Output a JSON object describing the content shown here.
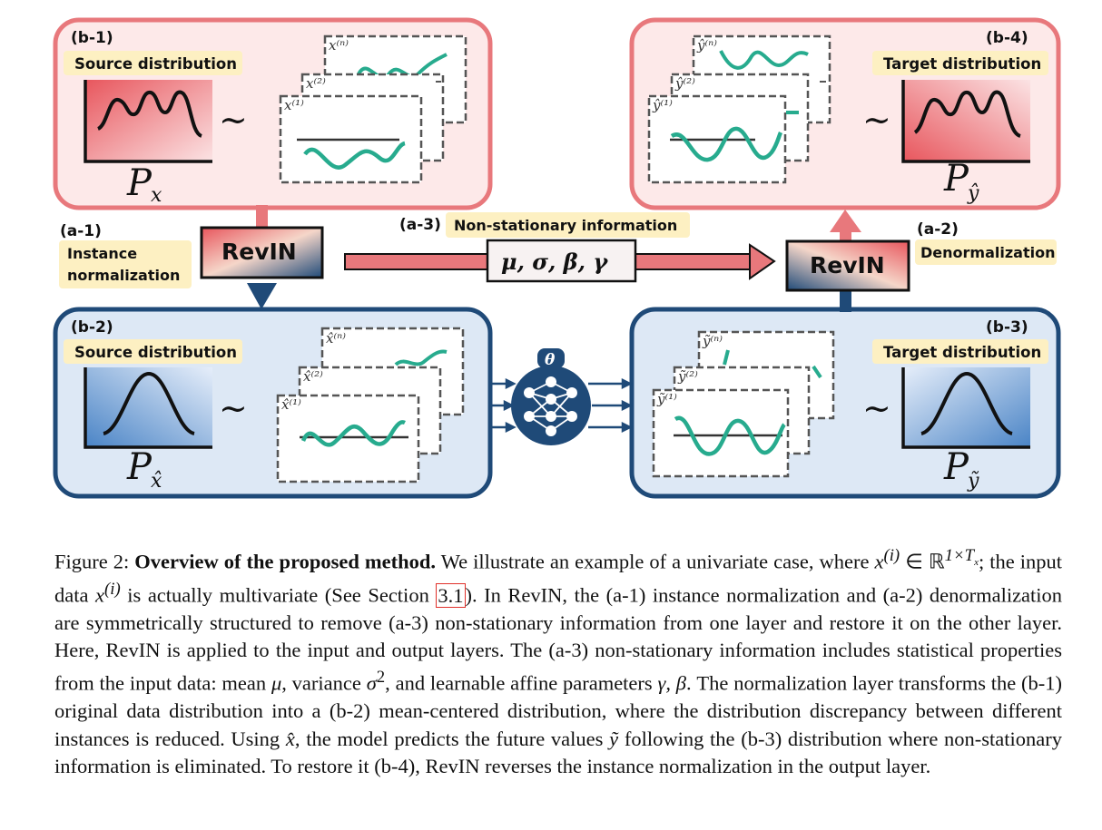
{
  "figure": {
    "panels": {
      "b1": {
        "tag": "(b-1)",
        "dist_label": "Source distribution",
        "symbol": "P",
        "sub": "x",
        "windows": [
          "x⁽ⁿ⁾",
          "x⁽²⁾",
          "x⁽¹⁾"
        ]
      },
      "b2": {
        "tag": "(b-2)",
        "dist_label": "Source distribution",
        "symbol": "P",
        "sub": "x̂",
        "windows": [
          "x̂⁽ⁿ⁾",
          "x̂⁽²⁾",
          "x̂⁽¹⁾"
        ]
      },
      "b3": {
        "tag": "(b-3)",
        "dist_label": "Target distribution",
        "symbol": "P",
        "sub": "ỹ",
        "windows": [
          "ỹ⁽ⁿ⁾",
          "ỹ⁽²⁾",
          "ỹ⁽¹⁾"
        ]
      },
      "b4": {
        "tag": "(b-4)",
        "dist_label": "Target distribution",
        "symbol": "P",
        "sub": "ŷ",
        "windows": [
          "ŷ⁽ⁿ⁾",
          "ŷ⁽²⁾",
          "ŷ⁽¹⁾"
        ]
      }
    },
    "tilde": "∼",
    "a1": {
      "tag": "(a-1)",
      "line1": "Instance",
      "line2": "normalization"
    },
    "a2": {
      "tag": "(a-2)",
      "label": "Denormalization"
    },
    "a3": {
      "tag": "(a-3)",
      "label": "Non-stationary information",
      "stats": "μ,  σ,  β,  γ"
    },
    "revin_label": "RevIN",
    "model_symbol": "θ"
  },
  "caption": {
    "fig_label": "Figure 2:",
    "bold_title": "Overview of the proposed method.",
    "s1": "We illustrate an example of a univariate case, where",
    "s2": "; the input data",
    "s3": "is actually multivariate (See Section",
    "section_ref": "3.1",
    "s4": "). In RevIN, the (a-1) instance normalization and (a-2) denormalization are symmetrically structured to remove (a-3) non-stationary information from one layer and restore it on the other layer. Here, RevIN is applied to the input and output layers. The (a-3) non-stationary information includes statistical properties from the input data: mean",
    "s5": ", variance",
    "s6": ", and learnable affine parameters",
    "s7": ". The normalization layer transforms the (b-1) original data distribution into a (b-2) mean-centered distribution, where the distribution discrepancy between different instances is reduced. Using",
    "s8": ", the model predicts the future values",
    "s9": "following the (b-3) distribution where non-stationary information is eliminated. To restore it (b-4), RevIN reverses the instance normalization in the output layer.",
    "m_x_i": "x",
    "m_sup_i": "(i)",
    "m_in_R": "∈ ℝ",
    "m_R_exp": "1×T",
    "m_R_exp_sub": "x",
    "m_mu": "μ",
    "m_sigma": "σ",
    "m_sigma_exp": "2",
    "m_gamma_beta": "γ, β",
    "m_xhat": "x̂",
    "m_ytilde": "ỹ"
  }
}
